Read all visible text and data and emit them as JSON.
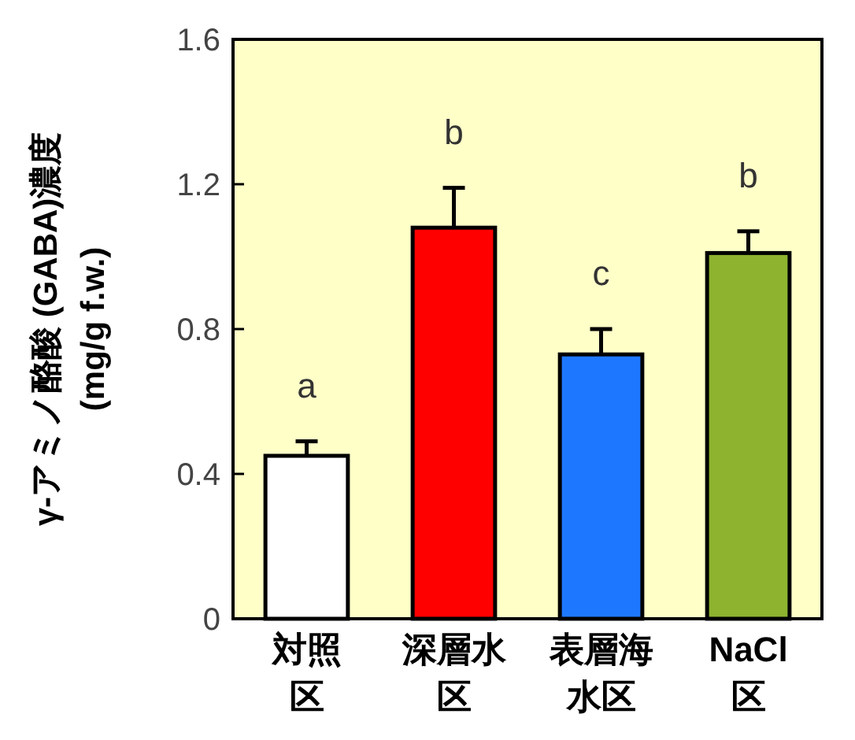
{
  "chart_data": {
    "type": "bar",
    "ylabel": "γ-アミノ酪酸 (GABA)濃度\n(mg/g f.w.)",
    "categories": [
      "対照区",
      "深層水区",
      "表層海水区",
      "NaCl区"
    ],
    "values": [
      0.45,
      1.08,
      0.73,
      1.01
    ],
    "colors": [
      "#ffffff",
      "#ff0000",
      "#1e78ff",
      "#8db32f"
    ],
    "errors": [
      [
        0.45,
        0.49
      ],
      [
        1.08,
        1.19
      ],
      [
        0.73,
        0.8
      ],
      [
        1.01,
        1.07
      ]
    ],
    "ylim": [
      0,
      1.6
    ],
    "yticks": [
      0,
      0.4,
      0.8,
      1.2,
      1.6
    ],
    "annotations": [
      "a",
      "b",
      "c",
      "b"
    ]
  }
}
